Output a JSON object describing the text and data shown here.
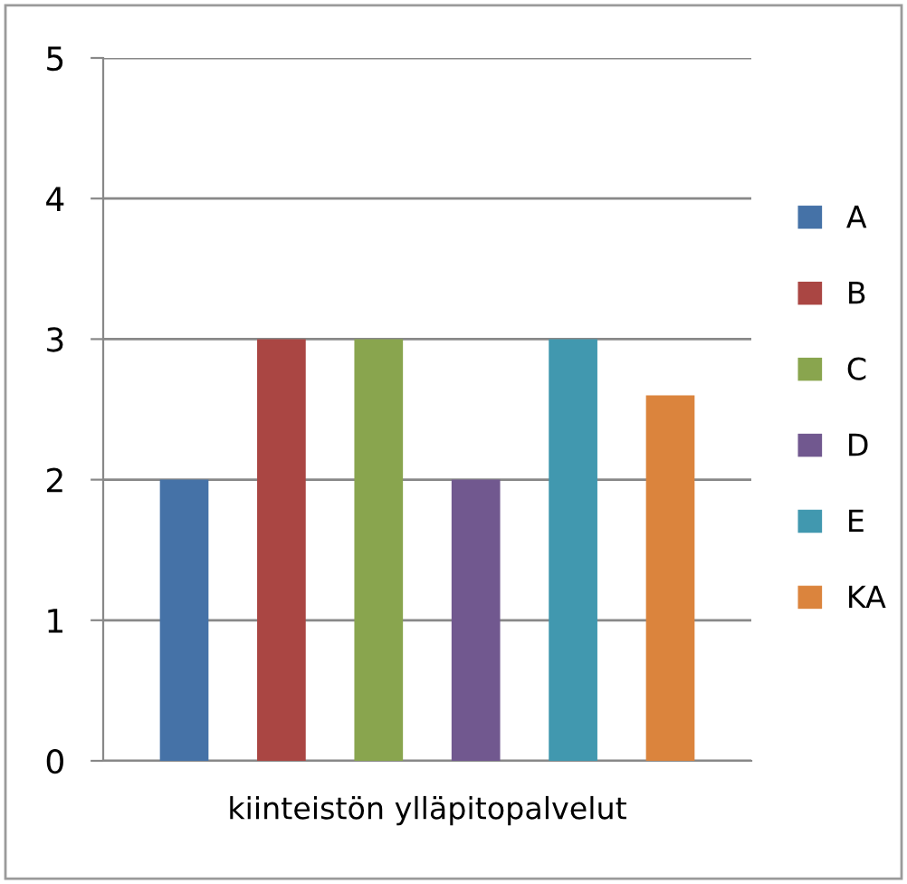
{
  "chart_data": {
    "type": "bar",
    "categories": [
      "kiinteistön ylläpitopalvelut"
    ],
    "series": [
      {
        "name": "A",
        "color": "#4572a7",
        "values": [
          2
        ]
      },
      {
        "name": "B",
        "color": "#aa4643",
        "values": [
          3
        ]
      },
      {
        "name": "C",
        "color": "#89a54e",
        "values": [
          3
        ]
      },
      {
        "name": "D",
        "color": "#71588f",
        "values": [
          2
        ]
      },
      {
        "name": "E",
        "color": "#4198af",
        "values": [
          3
        ]
      },
      {
        "name": "KA",
        "color": "#db843d",
        "values": [
          2.6
        ]
      }
    ],
    "ylim": [
      0,
      5
    ],
    "yticks": [
      0,
      1,
      2,
      3,
      4,
      5
    ],
    "grid": "y",
    "legend": "right"
  }
}
